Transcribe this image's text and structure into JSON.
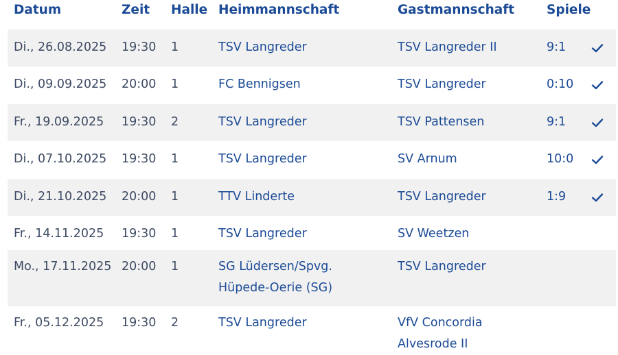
{
  "colors": {
    "header_text": "#1b4a96",
    "link_text": "#1b4a96",
    "muted_text": "#3d4a62",
    "row_shade": "#f1f1f1",
    "check": "#1b4a96"
  },
  "table": {
    "headers": {
      "datum": "Datum",
      "zeit": "Zeit",
      "halle": "Halle",
      "heim": "Heimmannschaft",
      "gast": "Gastmannschaft",
      "spiele": "Spiele"
    },
    "rows": [
      {
        "datum": "Di., 26.08.2025",
        "zeit": "19:30",
        "halle": "1",
        "heim": "TSV Langreder",
        "gast": "TSV Langreder II",
        "spiele": "9:1",
        "check_icon": "checkmark-icon",
        "played": true
      },
      {
        "datum": "Di., 09.09.2025",
        "zeit": "20:00",
        "halle": "1",
        "heim": "FC Bennigsen",
        "gast": "TSV Langreder",
        "spiele": "0:10",
        "check_icon": "checkmark-icon",
        "played": true
      },
      {
        "datum": "Fr., 19.09.2025",
        "zeit": "19:30",
        "halle": "2",
        "heim": "TSV Langreder",
        "gast": "TSV Pattensen",
        "spiele": "9:1",
        "check_icon": "checkmark-icon",
        "played": true
      },
      {
        "datum": "Di., 07.10.2025",
        "zeit": "19:30",
        "halle": "1",
        "heim": "TSV Langreder",
        "gast": "SV Arnum",
        "spiele": "10:0",
        "check_icon": "checkmark-icon",
        "played": true
      },
      {
        "datum": "Di., 21.10.2025",
        "zeit": "20:00",
        "halle": "1",
        "heim": "TTV Linderte",
        "gast": "TSV Langreder",
        "spiele": "1:9",
        "check_icon": "checkmark-icon",
        "played": true
      },
      {
        "datum": "Fr., 14.11.2025",
        "zeit": "19:30",
        "halle": "1",
        "heim": "TSV Langreder",
        "gast": "SV Weetzen",
        "spiele": "",
        "played": false
      },
      {
        "datum": "Mo., 17.11.2025",
        "zeit": "20:00",
        "halle": "1",
        "heim": "SG Lüdersen/Spvg. Hüpede-Oerie (SG)",
        "gast": "TSV Langreder",
        "spiele": "",
        "played": false
      },
      {
        "datum": "Fr., 05.12.2025",
        "zeit": "19:30",
        "halle": "2",
        "heim": "TSV Langreder",
        "gast": "VfV Concordia Alvesrode II",
        "spiele": "",
        "played": false
      }
    ]
  }
}
